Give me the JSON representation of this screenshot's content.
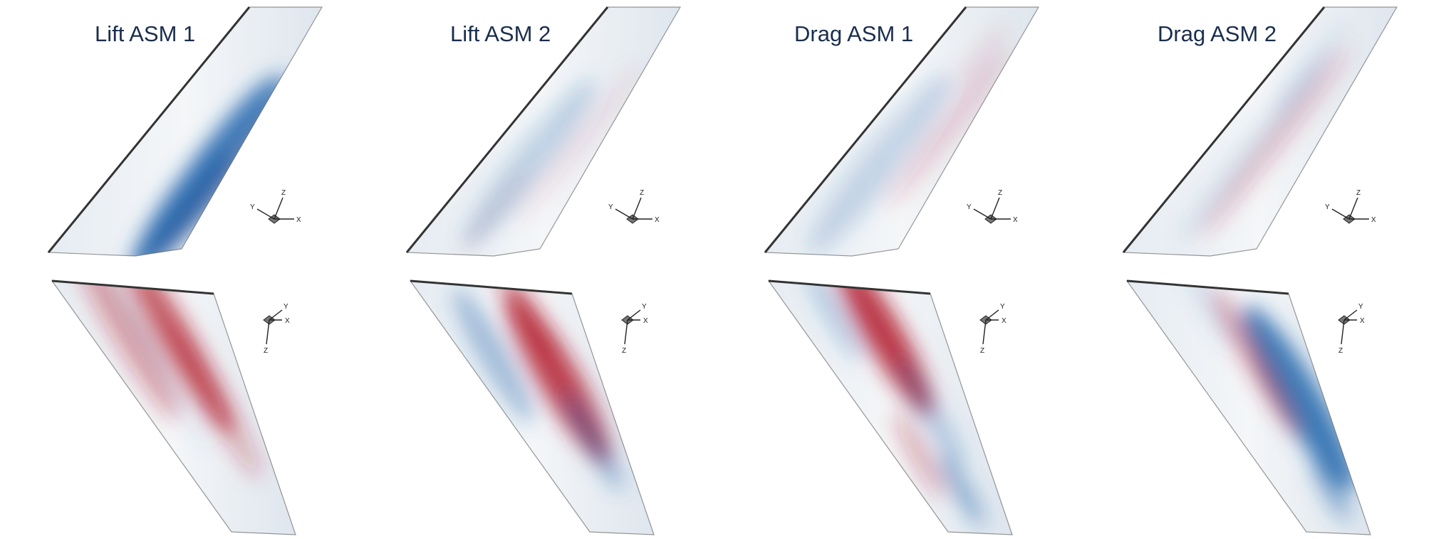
{
  "panels": [
    {
      "title": "Lift ASM 1"
    },
    {
      "title": "Lift ASM 2"
    },
    {
      "title": "Drag ASM 1"
    },
    {
      "title": "Drag ASM 2"
    }
  ],
  "axes": {
    "x": "X",
    "y": "Y",
    "z": "Z"
  },
  "colors": {
    "positive": "#b2182b",
    "negative": "#2166ac",
    "neutral": "#f4f6f8",
    "title": "#1a2d4d",
    "edge": "#555555"
  },
  "views": [
    "upper-surface",
    "lower-surface"
  ]
}
